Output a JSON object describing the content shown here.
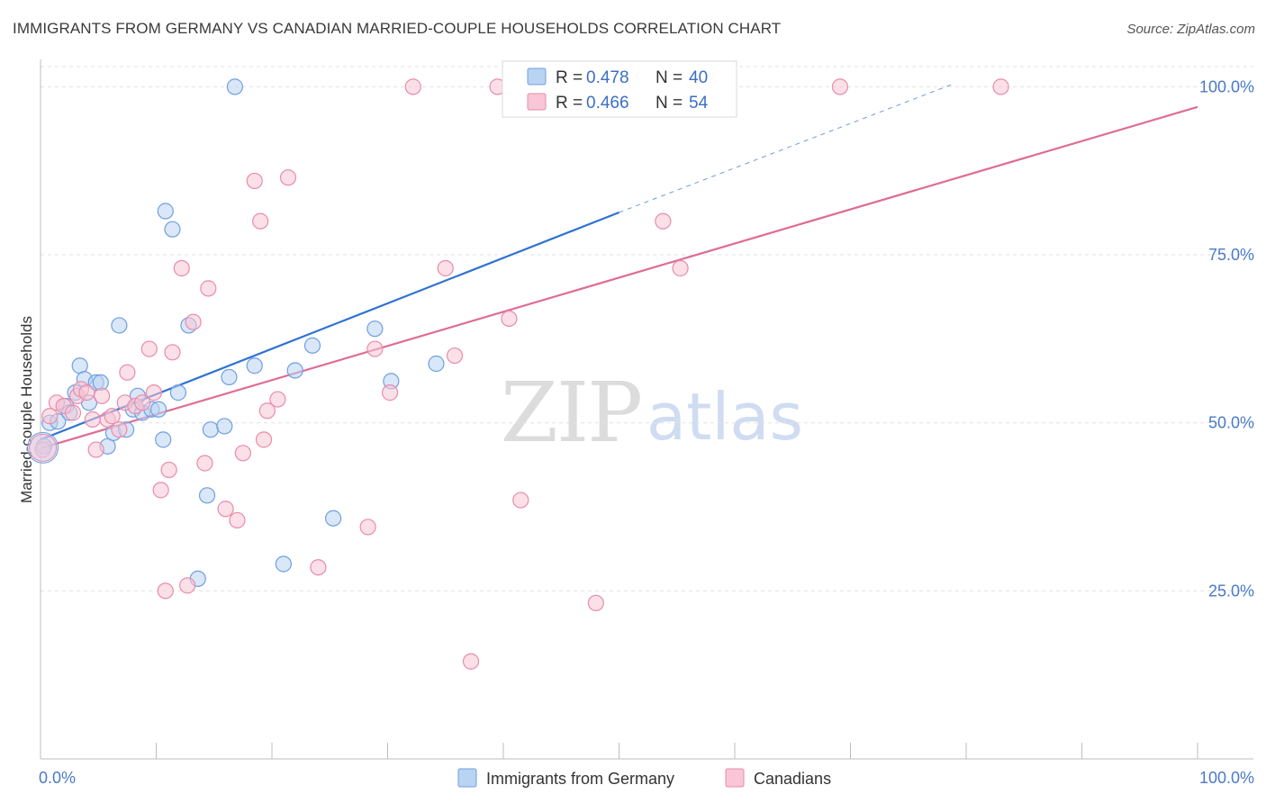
{
  "title": "IMMIGRANTS FROM GERMANY VS CANADIAN MARRIED-COUPLE HOUSEHOLDS CORRELATION CHART",
  "source": "Source: ZipAtlas.com",
  "watermark": {
    "zip": "ZIP",
    "atlas": "atlas"
  },
  "colors": {
    "blue_fill": "#b9d3f3",
    "blue_stroke": "#6f9fe0",
    "blue_line": "#2f72d1",
    "pink_fill": "#f8c6d6",
    "pink_stroke": "#e98bab",
    "pink_line": "#df6c94",
    "tick_text": "#4a7ac7"
  },
  "legend": {
    "entries": [
      {
        "r_label": "R =",
        "r_value": "0.478",
        "n_label": "N =",
        "n_value": "40"
      },
      {
        "r_label": "R =",
        "r_value": "0.466",
        "n_label": "N =",
        "n_value": "54"
      }
    ]
  },
  "chart_data": {
    "type": "scatter",
    "title": "IMMIGRANTS FROM GERMANY VS CANADIAN MARRIED-COUPLE HOUSEHOLDS CORRELATION CHART",
    "xlabel": "",
    "ylabel": "Married-couple Households",
    "xlim": [
      0,
      100
    ],
    "ylim": [
      0,
      103
    ],
    "x_tick_labels": [
      "0.0%",
      "100.0%"
    ],
    "y_ticks": [
      25,
      50,
      75,
      100
    ],
    "y_tick_labels": [
      "25.0%",
      "50.0%",
      "75.0%",
      "100.0%"
    ],
    "grid": true,
    "legend_position": "top-center",
    "series": [
      {
        "name": "Immigrants from Germany",
        "color": "#6f9fe0",
        "points": [
          [
            0.3,
            46.5
          ],
          [
            0.8,
            50.0
          ],
          [
            1.5,
            50.2
          ],
          [
            2.2,
            52.5
          ],
          [
            2.5,
            51.5
          ],
          [
            3.0,
            54.5
          ],
          [
            3.4,
            58.5
          ],
          [
            3.8,
            56.5
          ],
          [
            4.2,
            53.0
          ],
          [
            4.8,
            56.0
          ],
          [
            5.2,
            56.0
          ],
          [
            5.8,
            46.5
          ],
          [
            6.3,
            48.5
          ],
          [
            6.8,
            64.5
          ],
          [
            7.4,
            49.0
          ],
          [
            8.0,
            52.0
          ],
          [
            8.4,
            54.0
          ],
          [
            8.8,
            51.5
          ],
          [
            9.6,
            52.0
          ],
          [
            10.2,
            52.0
          ],
          [
            10.6,
            47.5
          ],
          [
            10.8,
            81.5
          ],
          [
            11.4,
            78.8
          ],
          [
            11.9,
            54.5
          ],
          [
            12.8,
            64.5
          ],
          [
            13.6,
            26.8
          ],
          [
            14.4,
            39.2
          ],
          [
            14.7,
            49.0
          ],
          [
            15.9,
            49.5
          ],
          [
            16.3,
            56.8
          ],
          [
            16.8,
            100.0
          ],
          [
            18.5,
            58.5
          ],
          [
            21.0,
            29.0
          ],
          [
            22.0,
            57.8
          ],
          [
            23.5,
            61.5
          ],
          [
            25.3,
            35.8
          ],
          [
            28.9,
            64.0
          ],
          [
            30.3,
            56.2
          ],
          [
            34.2,
            58.8
          ],
          [
            48.2,
            100.0
          ]
        ]
      },
      {
        "name": "Canadians",
        "color": "#e98bab",
        "points": [
          [
            0.2,
            46.0
          ],
          [
            0.8,
            51.0
          ],
          [
            1.4,
            53.0
          ],
          [
            2.0,
            52.5
          ],
          [
            2.8,
            51.5
          ],
          [
            3.2,
            54.0
          ],
          [
            3.5,
            55.0
          ],
          [
            4.0,
            54.5
          ],
          [
            4.5,
            50.5
          ],
          [
            4.8,
            46.0
          ],
          [
            5.3,
            54.0
          ],
          [
            5.8,
            50.5
          ],
          [
            6.2,
            51.0
          ],
          [
            6.8,
            49.0
          ],
          [
            7.3,
            53.0
          ],
          [
            7.5,
            57.5
          ],
          [
            8.2,
            52.5
          ],
          [
            8.8,
            53.0
          ],
          [
            9.4,
            61.0
          ],
          [
            9.8,
            54.5
          ],
          [
            10.4,
            40.0
          ],
          [
            10.8,
            25.0
          ],
          [
            11.1,
            43.0
          ],
          [
            11.4,
            60.5
          ],
          [
            12.2,
            73.0
          ],
          [
            12.7,
            25.8
          ],
          [
            13.2,
            65.0
          ],
          [
            14.2,
            44.0
          ],
          [
            14.5,
            70.0
          ],
          [
            16.0,
            37.2
          ],
          [
            17.0,
            35.5
          ],
          [
            17.5,
            45.5
          ],
          [
            18.5,
            86.0
          ],
          [
            19.0,
            80.0
          ],
          [
            19.3,
            47.5
          ],
          [
            19.6,
            51.8
          ],
          [
            20.5,
            53.5
          ],
          [
            21.4,
            86.5
          ],
          [
            24.0,
            28.5
          ],
          [
            28.3,
            34.5
          ],
          [
            28.9,
            61.0
          ],
          [
            30.2,
            54.5
          ],
          [
            32.2,
            100.0
          ],
          [
            35.0,
            73.0
          ],
          [
            35.8,
            60.0
          ],
          [
            37.2,
            14.5
          ],
          [
            39.5,
            100.0
          ],
          [
            40.5,
            65.5
          ],
          [
            41.5,
            38.5
          ],
          [
            48.0,
            23.2
          ],
          [
            53.8,
            80.0
          ],
          [
            55.3,
            73.0
          ],
          [
            69.1,
            100.0
          ],
          [
            83.0,
            100.0
          ]
        ]
      }
    ],
    "trend_lines": [
      {
        "series": "Immigrants from Germany",
        "x0": 0,
        "y0": 47.5,
        "x1": 50,
        "y1": 81.3,
        "dashed_to_x": 79,
        "dashed_to_y": 100.5
      },
      {
        "series": "Canadians",
        "x0": 0,
        "y0": 46.2,
        "x1": 100,
        "y1": 97.0
      }
    ]
  }
}
